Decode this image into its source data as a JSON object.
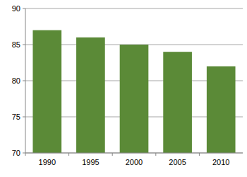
{
  "chart_data": {
    "type": "bar",
    "categories": [
      "1990",
      "1995",
      "2000",
      "2005",
      "2010"
    ],
    "values": [
      87,
      86,
      85,
      84,
      82
    ],
    "color": "#5b8a37",
    "ylim": [
      70,
      90
    ],
    "yticks": [
      70,
      75,
      80,
      85,
      90
    ],
    "grid": true
  }
}
